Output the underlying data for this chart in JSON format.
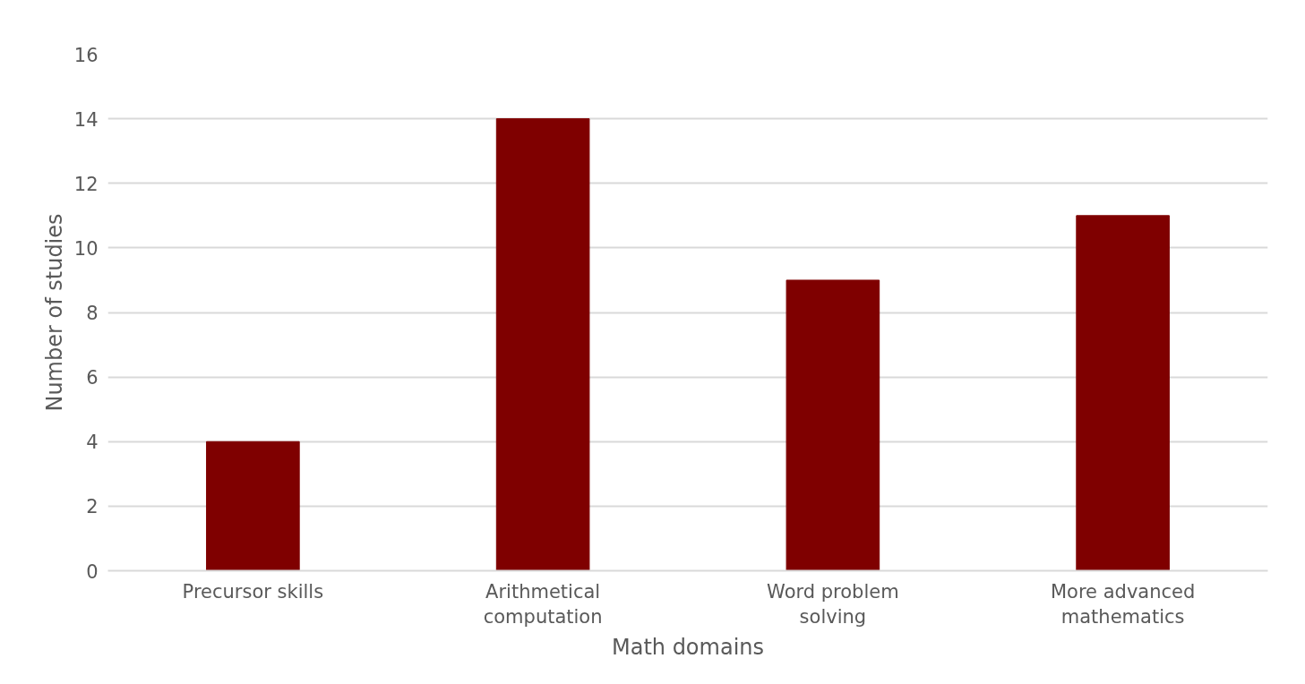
{
  "chart_data": {
    "type": "bar",
    "xlabel": "Math domains",
    "ylabel": "Number of studies",
    "categories": [
      "Precursor skills",
      "Arithmetical computation",
      "Word problem solving",
      "More advanced mathematics"
    ],
    "values": [
      4,
      14,
      9,
      11
    ],
    "color": "#7f0000",
    "ylim": [
      0,
      16
    ],
    "yticks": [
      0,
      2,
      4,
      6,
      8,
      10,
      12,
      14,
      16
    ],
    "grid": "y"
  }
}
